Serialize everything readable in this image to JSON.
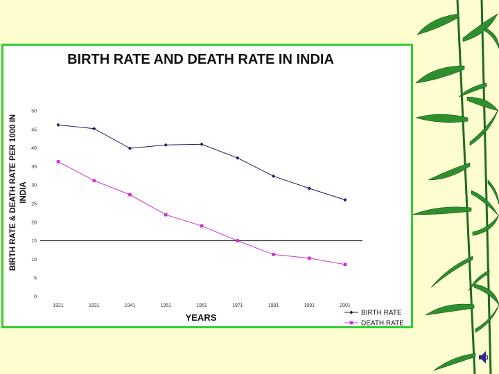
{
  "chart_data": {
    "type": "line",
    "title": "BIRTH RATE AND DEATH RATE IN INDIA",
    "xlabel": "YEARS",
    "ylabel": "BIRTH RATE & DEATH RATE PER 1000 IN INDIA",
    "categories": [
      "1921",
      "1931",
      "1941",
      "1951",
      "1961",
      "1971",
      "1981",
      "1991",
      "2001"
    ],
    "yticks": [
      0,
      5,
      10,
      15,
      20,
      25,
      30,
      35,
      40,
      45,
      50
    ],
    "ylim": [
      0,
      50
    ],
    "reference_line": 15,
    "legend_position": "bottom-right",
    "series": [
      {
        "name": "BIRTH RATE",
        "marker": "diamond",
        "color": "#1a1a60",
        "values": [
          46.2,
          45.2,
          39.9,
          40.8,
          41.0,
          37.3,
          32.4,
          29.1,
          26.0
        ]
      },
      {
        "name": "DEATH RATE",
        "marker": "square",
        "color": "#cc33cc",
        "values": [
          36.3,
          31.2,
          27.4,
          22.0,
          19.0,
          15.0,
          11.3,
          10.3,
          8.6
        ]
      }
    ]
  }
}
